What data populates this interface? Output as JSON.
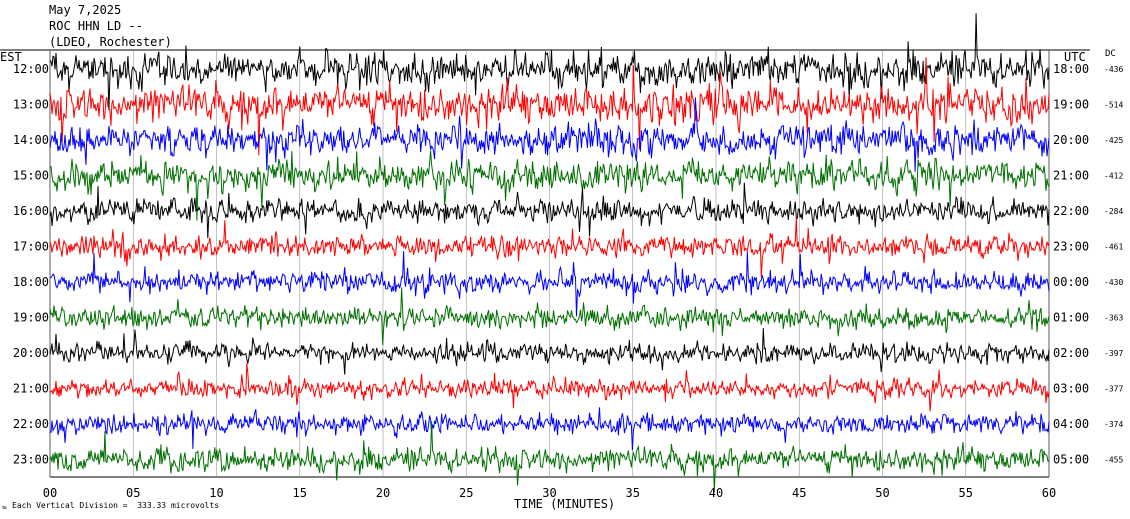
{
  "header": {
    "date": "May 7,2025",
    "station": "ROC HHN LD --",
    "location": "(LDEO, Rochester)"
  },
  "left_axis_title": "EST",
  "right_axis_title": "UTC",
  "dc_title": "DC",
  "footer": {
    "scale_note": "Each Vertical Division =  333.33 microvolts",
    "x_title": "TIME (MINUTES)"
  },
  "colors": {
    "black": "#000000",
    "red": "#ff0000",
    "blue": "#0000ff",
    "green": "#007000"
  },
  "chart_data": {
    "type": "line",
    "title": "May 7,2025",
    "xlabel": "TIME (MINUTES)",
    "ylabel": "",
    "xlim": [
      0,
      60
    ],
    "x_ticks": [
      "00",
      "05",
      "10",
      "15",
      "20",
      "25",
      "30",
      "35",
      "40",
      "45",
      "50",
      "55",
      "60"
    ],
    "grid": true,
    "series": [
      {
        "est": "12:00",
        "utc": "18:00",
        "dc": "-436",
        "color": "black",
        "amplitude": 1.6
      },
      {
        "est": "13:00",
        "utc": "19:00",
        "dc": "-514",
        "color": "red",
        "amplitude": 1.7
      },
      {
        "est": "14:00",
        "utc": "20:00",
        "dc": "-425",
        "color": "blue",
        "amplitude": 1.4
      },
      {
        "est": "15:00",
        "utc": "21:00",
        "dc": "-412",
        "color": "green",
        "amplitude": 1.4
      },
      {
        "est": "16:00",
        "utc": "22:00",
        "dc": "-284",
        "color": "black",
        "amplitude": 1.1
      },
      {
        "est": "17:00",
        "utc": "23:00",
        "dc": "-461",
        "color": "red",
        "amplitude": 1.0
      },
      {
        "est": "18:00",
        "utc": "00:00",
        "dc": "-430",
        "color": "blue",
        "amplitude": 1.0
      },
      {
        "est": "19:00",
        "utc": "01:00",
        "dc": "-363",
        "color": "green",
        "amplitude": 1.0
      },
      {
        "est": "20:00",
        "utc": "02:00",
        "dc": "-397",
        "color": "black",
        "amplitude": 0.9
      },
      {
        "est": "21:00",
        "utc": "03:00",
        "dc": "-377",
        "color": "red",
        "amplitude": 0.9
      },
      {
        "est": "22:00",
        "utc": "04:00",
        "dc": "-374",
        "color": "blue",
        "amplitude": 0.9
      },
      {
        "est": "23:00",
        "utc": "05:00",
        "dc": "-455",
        "color": "green",
        "amplitude": 1.1
      }
    ]
  }
}
